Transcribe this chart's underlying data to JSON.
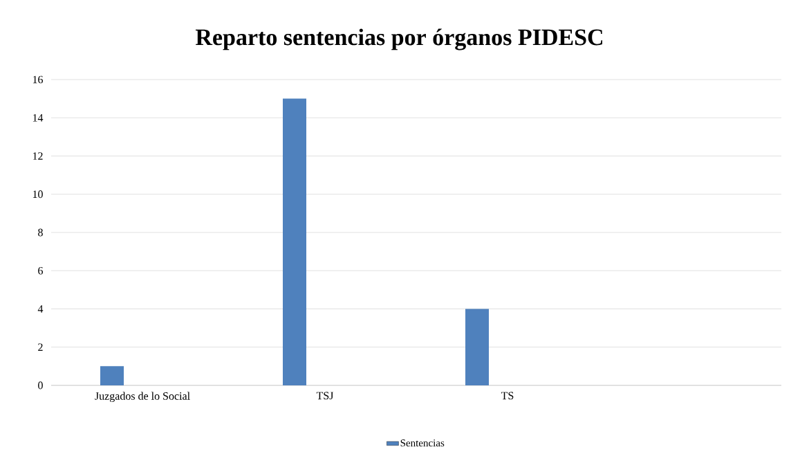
{
  "chart_data": {
    "type": "bar",
    "title": "Reparto sentencias por órganos PIDESC",
    "categories": [
      "Juzgados de lo Social",
      "TSJ",
      "TS",
      null
    ],
    "series": [
      {
        "name": "Sentencias",
        "color": "#4f81bd",
        "values": [
          1,
          15,
          4,
          null
        ]
      }
    ],
    "ylim": [
      0,
      16
    ],
    "yticks": [
      0,
      2,
      4,
      6,
      8,
      10,
      12,
      14,
      16
    ],
    "grid": "y",
    "legend": "bottom"
  }
}
